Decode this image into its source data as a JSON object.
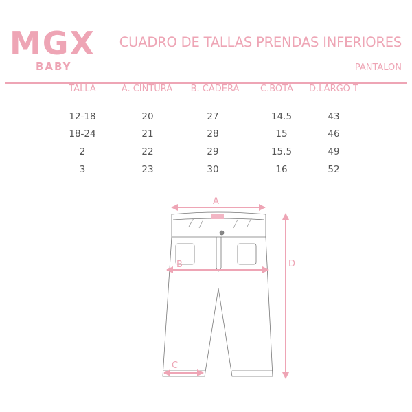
{
  "brand": {
    "logo": "MGX",
    "sub": "BABY"
  },
  "title": "CUADRO DE TALLAS PRENDAS INFERIORES",
  "subtitle": "PANTALON",
  "table": {
    "headers": [
      "TALLA",
      "A. CINTURA",
      "B. CADERA",
      "C.BOTA",
      "D.LARGO T"
    ],
    "rows": [
      [
        "12-18",
        "20",
        "27",
        "14.5",
        "43"
      ],
      [
        "18-24",
        "21",
        "28",
        "15",
        "46"
      ],
      [
        "2",
        "22",
        "29",
        "15.5",
        "49"
      ],
      [
        "3",
        "23",
        "30",
        "16",
        "52"
      ]
    ]
  },
  "diagram": {
    "labels": {
      "a": "A",
      "b": "B",
      "c": "C",
      "d": "D"
    }
  },
  "colors": {
    "accent": "#eea5b5",
    "text": "#555555"
  }
}
